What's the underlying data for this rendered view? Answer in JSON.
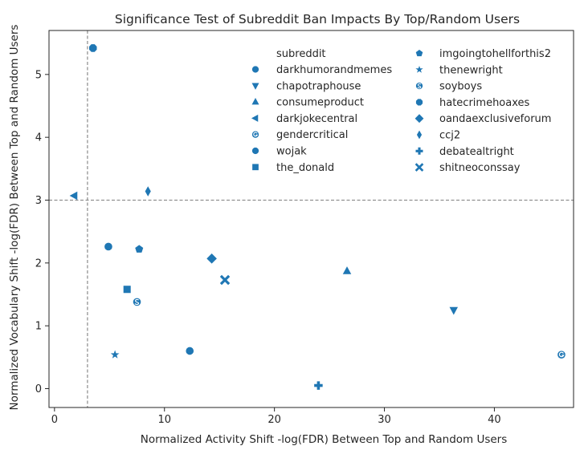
{
  "chart_data": {
    "type": "scatter",
    "title": "Significance Test of Subreddit Ban Impacts By Top/Random Users",
    "xlabel": "Normalized Activity Shift -log(FDR) Between Top and Random Users",
    "ylabel": "Normalized Vocabulary Shift -log(FDR) Between Top and Random Users",
    "xlim": [
      -0.5,
      47.2
    ],
    "ylim": [
      -0.3,
      5.7
    ],
    "xticks": [
      0,
      10,
      20,
      30,
      40
    ],
    "yticks": [
      0,
      1,
      2,
      3,
      4,
      5
    ],
    "grid": false,
    "threshold_lines": {
      "x": 3,
      "y": 3,
      "style": "dashed"
    },
    "marker_color": "#1f77b4",
    "legend_title": "subreddit",
    "legend_position": "top-right",
    "series": [
      {
        "name": "darkhumorandmemes",
        "marker": "circle",
        "x": 12.3,
        "y": 0.6
      },
      {
        "name": "chapotraphouse",
        "marker": "triangle-down",
        "x": 36.3,
        "y": 1.25
      },
      {
        "name": "consumeproduct",
        "marker": "triangle-up",
        "x": 26.6,
        "y": 1.87
      },
      {
        "name": "darkjokecentral",
        "marker": "triangle-left",
        "x": 1.8,
        "y": 3.07
      },
      {
        "name": "gendercritical",
        "marker": "G",
        "x": 46.1,
        "y": 0.54
      },
      {
        "name": "wojak",
        "marker": "circle",
        "x": 4.9,
        "y": 2.26
      },
      {
        "name": "the_donald",
        "marker": "square",
        "x": 6.6,
        "y": 1.58
      },
      {
        "name": "imgoingtohellforthis2",
        "marker": "pentagon",
        "x": 7.7,
        "y": 2.22
      },
      {
        "name": "thenewright",
        "marker": "star",
        "x": 5.5,
        "y": 0.54
      },
      {
        "name": "soyboys",
        "marker": "S",
        "x": 7.5,
        "y": 1.38
      },
      {
        "name": "hatecrimehoaxes",
        "marker": "octagon",
        "x": 3.5,
        "y": 5.42
      },
      {
        "name": "oandaexclusiveforum",
        "marker": "diamond",
        "x": 14.3,
        "y": 2.07
      },
      {
        "name": "ccj2",
        "marker": "thin-diamond",
        "x": 8.5,
        "y": 3.14
      },
      {
        "name": "debatealtright",
        "marker": "plus",
        "x": 24.0,
        "y": 0.05
      },
      {
        "name": "shitneoconssay",
        "marker": "x",
        "x": 15.5,
        "y": 1.73
      }
    ]
  }
}
